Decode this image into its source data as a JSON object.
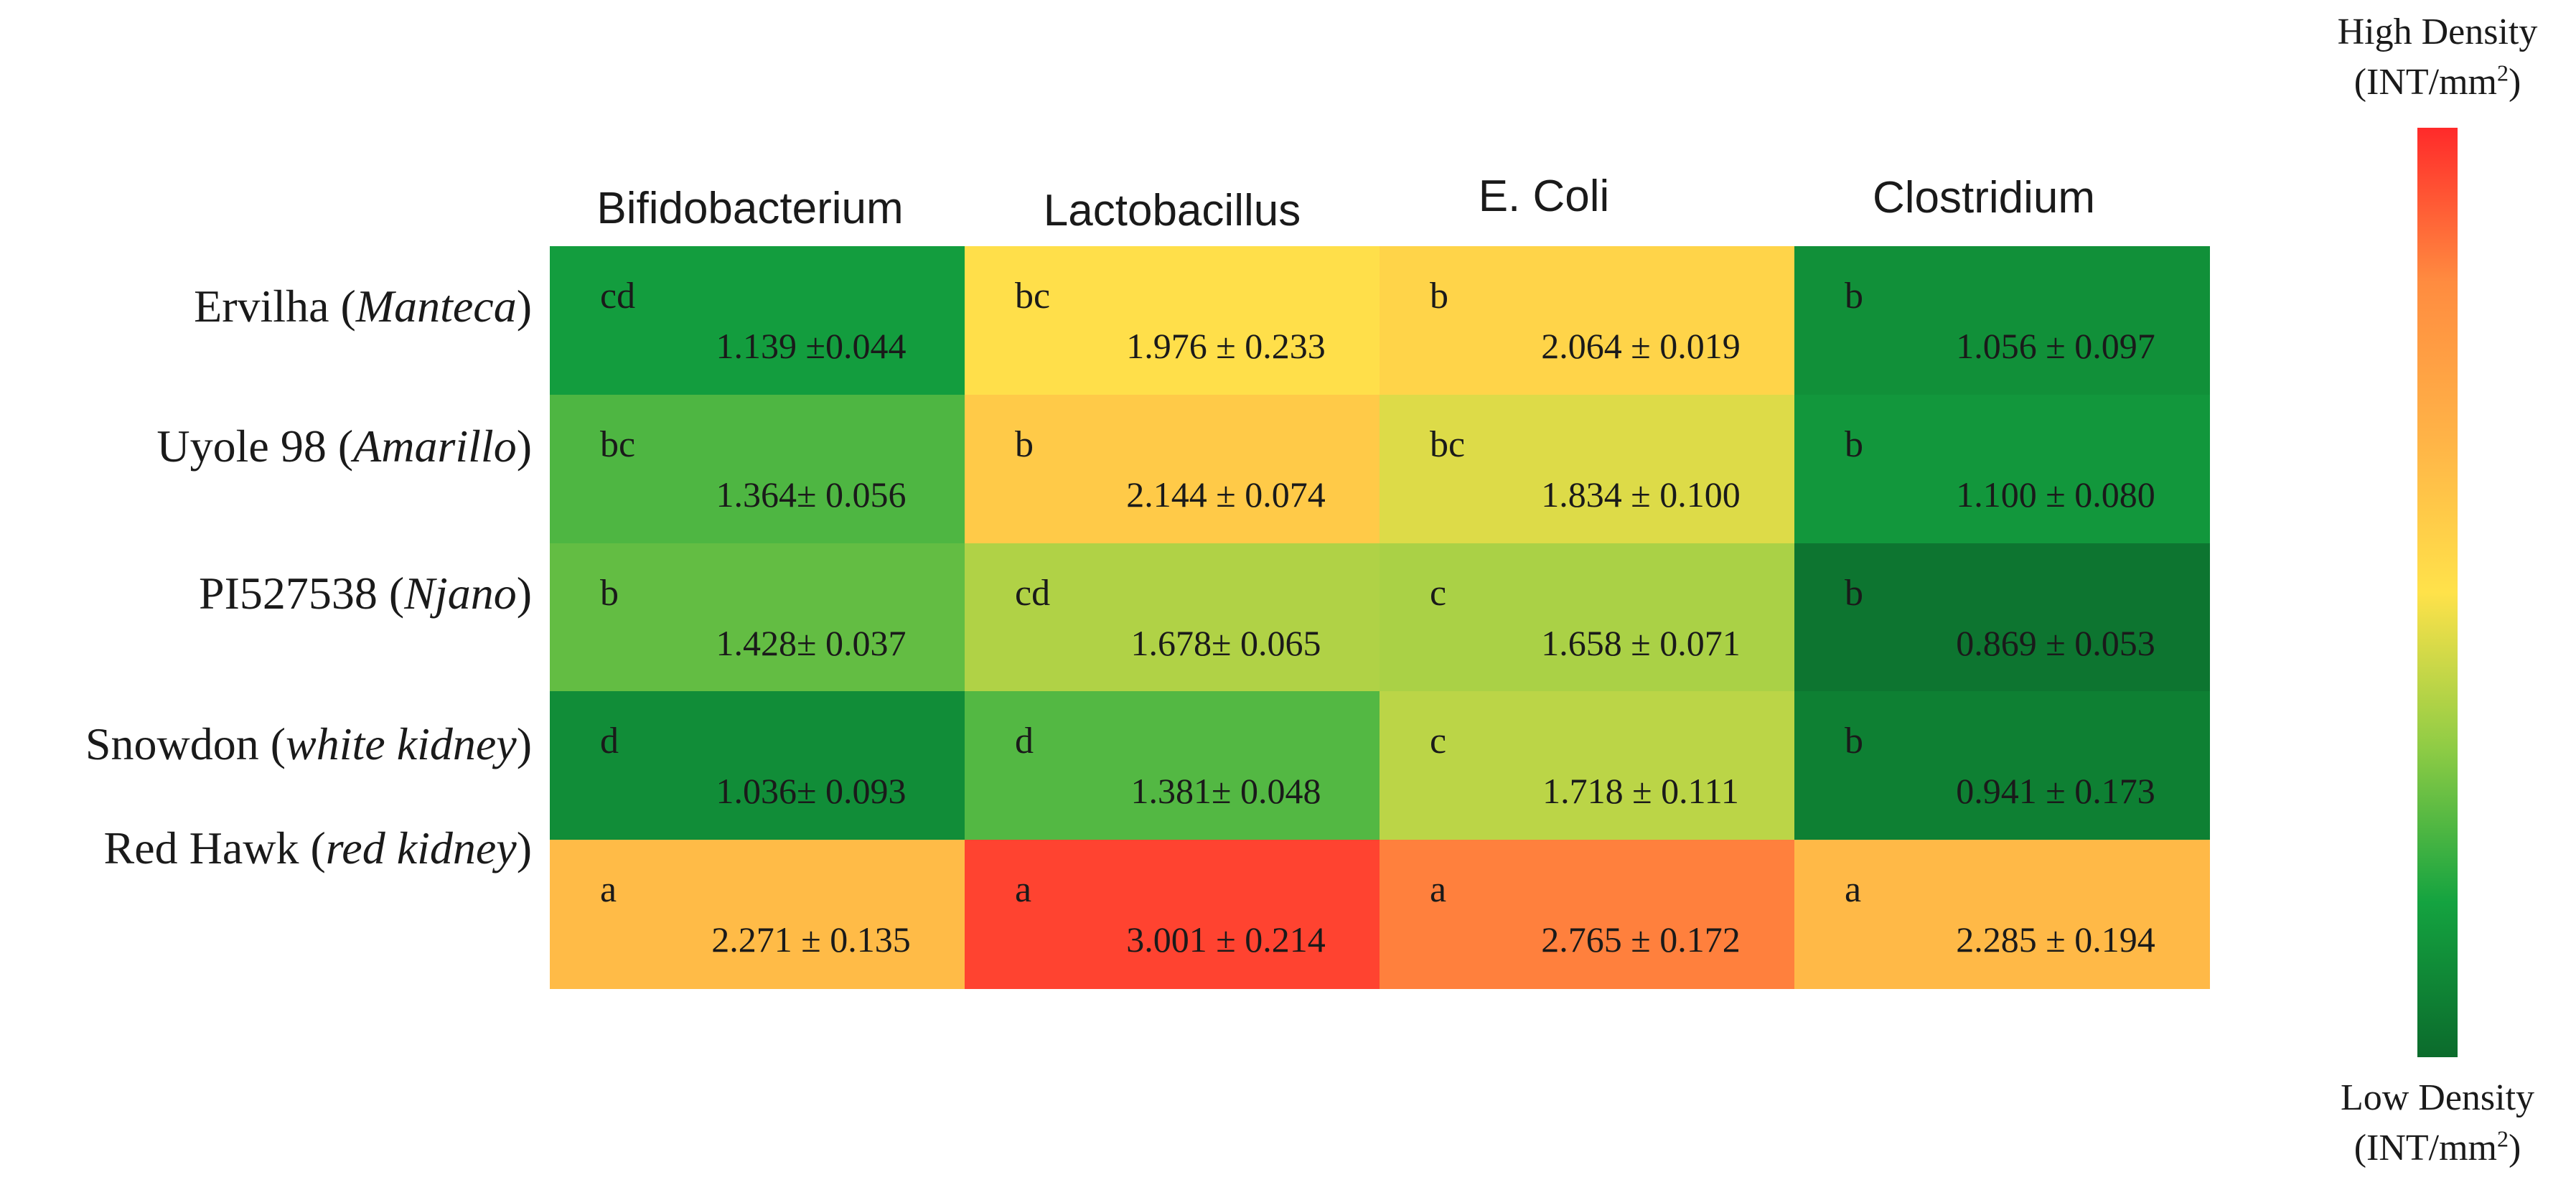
{
  "chart_data": {
    "type": "heatmap",
    "columns": [
      "Bifidobacterium",
      "Lactobacillus",
      "E. Coli",
      "Clostridium"
    ],
    "rows": [
      {
        "name": "Ervilha",
        "variety": "Manteca",
        "cells": [
          {
            "letter": "cd",
            "value": 1.139,
            "text": "1.139 ±0.044"
          },
          {
            "letter": "bc",
            "value": 1.976,
            "text": "1.976 ± 0.233"
          },
          {
            "letter": "b",
            "value": 2.064,
            "text": "2.064 ± 0.019"
          },
          {
            "letter": "b",
            "value": 1.056,
            "text": "1.056 ± 0.097"
          }
        ]
      },
      {
        "name": "Uyole 98",
        "variety": "Amarillo",
        "cells": [
          {
            "letter": "bc",
            "value": 1.364,
            "text": "1.364± 0.056"
          },
          {
            "letter": "b",
            "value": 2.144,
            "text": "2.144 ± 0.074"
          },
          {
            "letter": "bc",
            "value": 1.834,
            "text": "1.834 ± 0.100"
          },
          {
            "letter": "b",
            "value": 1.1,
            "text": "1.100 ± 0.080"
          }
        ]
      },
      {
        "name": "PI527538",
        "variety": "Njano",
        "cells": [
          {
            "letter": "b",
            "value": 1.428,
            "text": "1.428± 0.037"
          },
          {
            "letter": "cd",
            "value": 1.678,
            "text": "1.678± 0.065"
          },
          {
            "letter": "c",
            "value": 1.658,
            "text": "1.658 ± 0.071"
          },
          {
            "letter": "b",
            "value": 0.869,
            "text": "0.869 ± 0.053"
          }
        ]
      },
      {
        "name": "Snowdon",
        "variety": "white kidney",
        "cells": [
          {
            "letter": "d",
            "value": 1.036,
            "text": "1.036± 0.093"
          },
          {
            "letter": "d",
            "value": 1.381,
            "text": "1.381± 0.048"
          },
          {
            "letter": "c",
            "value": 1.718,
            "text": "1.718 ± 0.111"
          },
          {
            "letter": "b",
            "value": 0.941,
            "text": "0.941 ± 0.173"
          }
        ]
      },
      {
        "name": "Red Hawk",
        "variety": "red kidney",
        "cells": [
          {
            "letter": "a",
            "value": 2.271,
            "text": "2.271 ± 0.135"
          },
          {
            "letter": "a",
            "value": 3.001,
            "text": "3.001 ± 0.214"
          },
          {
            "letter": "a",
            "value": 2.765,
            "text": "2.765 ± 0.172"
          },
          {
            "letter": "a",
            "value": 2.285,
            "text": "2.285 ± 0.194"
          }
        ]
      }
    ],
    "value_range": [
      0.8,
      3.1
    ],
    "colorscale": [
      "#0b6b2c",
      "#14a340",
      "#8fcc45",
      "#ffe24a",
      "#ffb347",
      "#ff8c40",
      "#ff2a2a"
    ],
    "legend": {
      "high_label": "High Density",
      "low_label": "Low Density",
      "unit_prefix": "(INT/mm",
      "unit_sup": "2",
      "unit_suffix": ")"
    }
  }
}
